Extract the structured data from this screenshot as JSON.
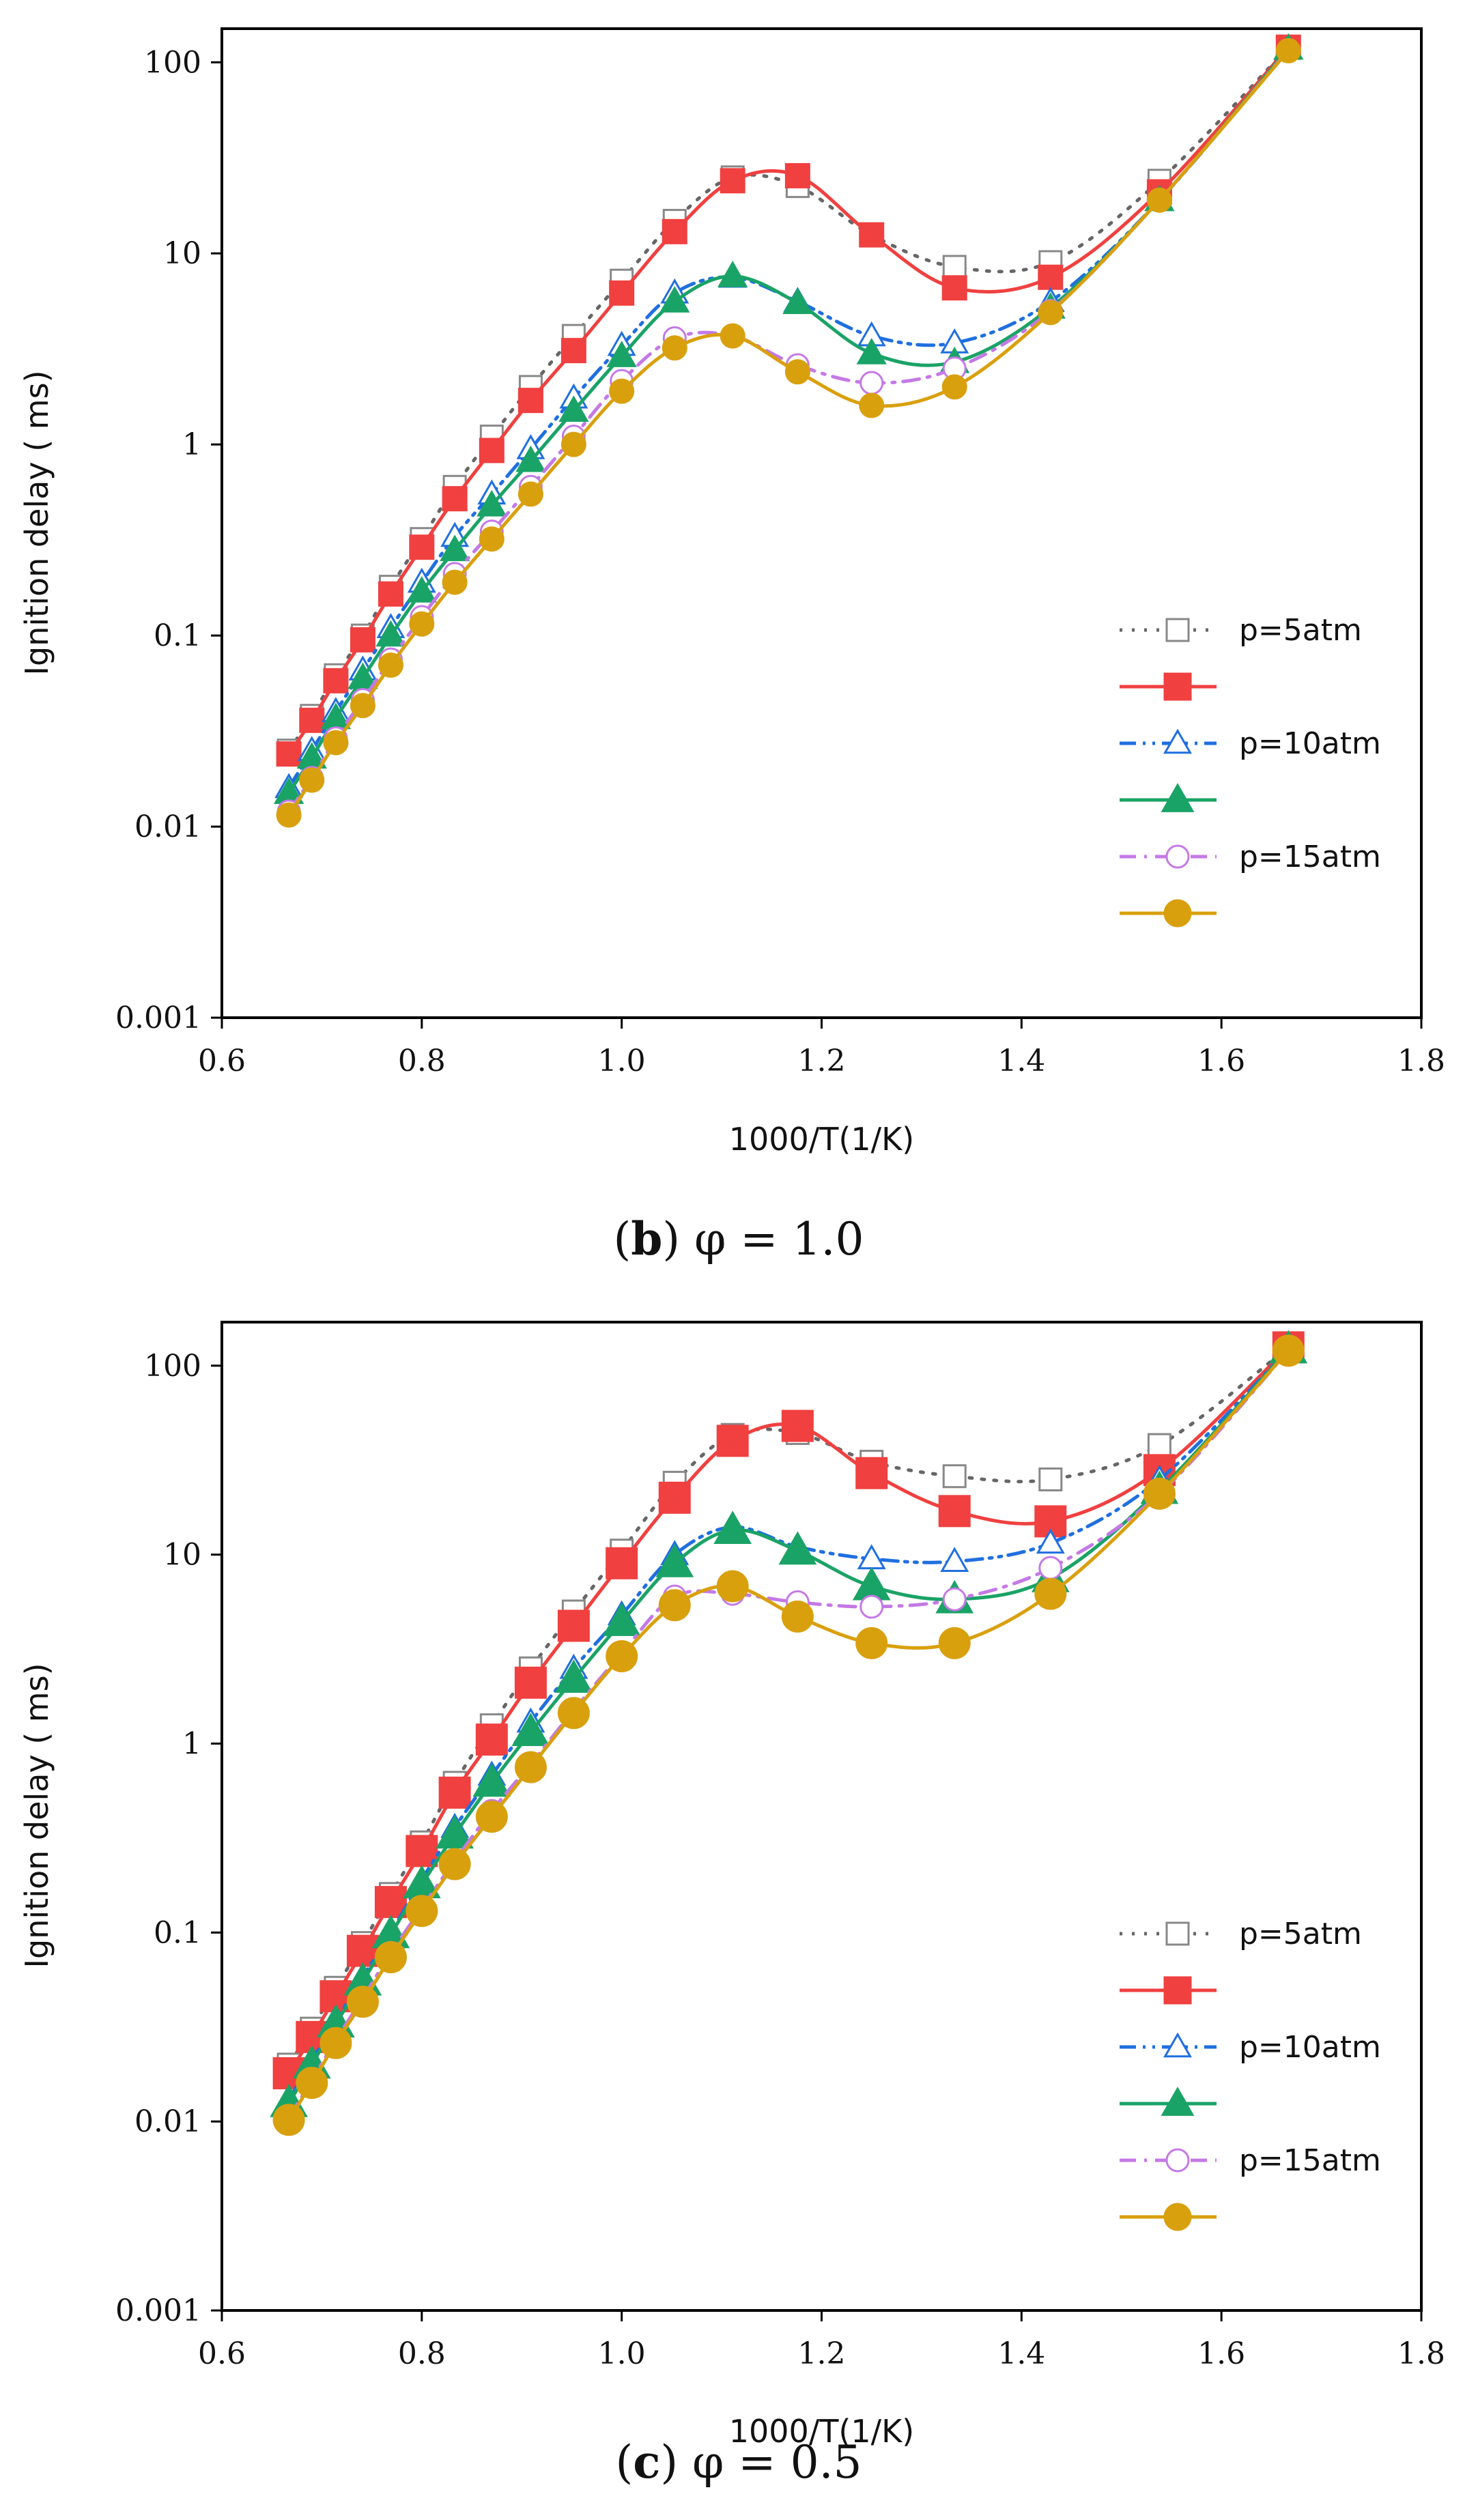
{
  "colors": {
    "p5": "#666666",
    "p5_marker_stroke": "#888888",
    "p10": "#1f6fe0",
    "p15": "#c479e6",
    "red": "#f04040",
    "green": "#1aa366",
    "gold": "#d9a00e"
  },
  "chart_data": [
    {
      "type": "line",
      "panel": "b",
      "caption": {
        "letter": "b",
        "text": "φ = 1.0"
      },
      "xlabel": "1000/T(1/K)",
      "ylabel": "Ignition delay ( ms)",
      "xlim": [
        0.6,
        1.8
      ],
      "ylim": [
        0.001,
        150
      ],
      "yscale": "log",
      "xticks": [
        "0.6",
        "0.8",
        "1.0",
        "1.2",
        "1.4",
        "1.6",
        "1.8"
      ],
      "yticks": [
        "0.001",
        "0.01",
        "0.1",
        "1",
        "10",
        "100"
      ],
      "legend_position": "lower-right",
      "series": [
        {
          "name": "p=5atm",
          "style": "dotted",
          "color_key": "p5",
          "marker": "square",
          "filled": false,
          "x": [
            0.667,
            0.69,
            0.714,
            0.741,
            0.769,
            0.8,
            0.833,
            0.87,
            0.909,
            0.952,
            1.0,
            1.053,
            1.111,
            1.176,
            1.25,
            1.333,
            1.429,
            1.538,
            1.667
          ],
          "y": [
            0.025,
            0.038,
            0.062,
            0.1,
            0.18,
            0.32,
            0.6,
            1.1,
            2.0,
            3.7,
            7.2,
            14.8,
            25.0,
            22.5,
            12.5,
            8.5,
            9.0,
            24.0,
            120.0
          ]
        },
        {
          "name": "",
          "style": "solid",
          "color_key": "red",
          "marker": "square",
          "filled": true,
          "x": [
            0.667,
            0.69,
            0.714,
            0.741,
            0.769,
            0.8,
            0.833,
            0.87,
            0.909,
            0.952,
            1.0,
            1.053,
            1.111,
            1.176,
            1.25,
            1.333,
            1.429,
            1.538,
            1.667
          ],
          "y": [
            0.024,
            0.036,
            0.058,
            0.095,
            0.165,
            0.29,
            0.52,
            0.93,
            1.7,
            3.1,
            6.2,
            13.0,
            24.0,
            25.5,
            12.5,
            6.6,
            7.5,
            21.0,
            120.0
          ]
        },
        {
          "name": "p=10atm",
          "style": "dashdotdot",
          "color_key": "p10",
          "marker": "triangle",
          "filled": false,
          "x": [
            0.667,
            0.69,
            0.714,
            0.741,
            0.769,
            0.8,
            0.833,
            0.87,
            0.909,
            0.952,
            1.0,
            1.053,
            1.111,
            1.176,
            1.25,
            1.333,
            1.429,
            1.538,
            1.667
          ],
          "y": [
            0.016,
            0.025,
            0.04,
            0.066,
            0.11,
            0.19,
            0.33,
            0.55,
            0.95,
            1.75,
            3.3,
            6.2,
            7.5,
            5.6,
            3.7,
            3.4,
            5.6,
            19.0,
            118.0
          ]
        },
        {
          "name": "",
          "style": "solid",
          "color_key": "green",
          "marker": "triangle",
          "filled": true,
          "x": [
            0.667,
            0.69,
            0.714,
            0.741,
            0.769,
            0.8,
            0.833,
            0.87,
            0.909,
            0.952,
            1.0,
            1.053,
            1.111,
            1.176,
            1.25,
            1.333,
            1.429,
            1.538,
            1.667
          ],
          "y": [
            0.015,
            0.023,
            0.037,
            0.06,
            0.1,
            0.17,
            0.28,
            0.48,
            0.82,
            1.5,
            2.9,
            5.6,
            7.6,
            5.5,
            3.0,
            2.7,
            5.2,
            19.0,
            118.0
          ]
        },
        {
          "name": "p=15atm",
          "style": "dashdot",
          "color_key": "p15",
          "marker": "circle",
          "filled": false,
          "x": [
            0.667,
            0.69,
            0.714,
            0.741,
            0.769,
            0.8,
            0.833,
            0.87,
            0.909,
            0.952,
            1.0,
            1.053,
            1.111,
            1.176,
            1.25,
            1.333,
            1.429,
            1.538,
            1.667
          ],
          "y": [
            0.012,
            0.018,
            0.029,
            0.046,
            0.075,
            0.125,
            0.21,
            0.35,
            0.6,
            1.1,
            2.15,
            3.6,
            3.7,
            2.6,
            2.1,
            2.5,
            5.0,
            19.0,
            116.0
          ]
        },
        {
          "name": "",
          "style": "solid",
          "color_key": "gold",
          "marker": "circle",
          "filled": true,
          "x": [
            0.667,
            0.69,
            0.714,
            0.741,
            0.769,
            0.8,
            0.833,
            0.87,
            0.909,
            0.952,
            1.0,
            1.053,
            1.111,
            1.176,
            1.25,
            1.333,
            1.429,
            1.538,
            1.667
          ],
          "y": [
            0.0115,
            0.0175,
            0.0275,
            0.043,
            0.07,
            0.115,
            0.19,
            0.32,
            0.55,
            1.0,
            1.9,
            3.2,
            3.7,
            2.4,
            1.6,
            2.0,
            4.9,
            19.0,
            115.0
          ]
        }
      ]
    },
    {
      "type": "line",
      "panel": "c",
      "caption": {
        "letter": "c",
        "text": "φ = 0.5"
      },
      "xlabel": "1000/T(1/K)",
      "ylabel": "Ignition delay ( ms)",
      "xlim": [
        0.6,
        1.8
      ],
      "ylim": [
        0.001,
        170
      ],
      "yscale": "log",
      "xticks": [
        "0.6",
        "0.8",
        "1.0",
        "1.2",
        "1.4",
        "1.6",
        "1.8"
      ],
      "yticks": [
        "0.001",
        "0.01",
        "0.1",
        "1",
        "10",
        "100"
      ],
      "legend_position": "lower-right",
      "series": [
        {
          "name": "p=5atm",
          "style": "dotted",
          "color_key": "p5",
          "marker": "square",
          "filled": false,
          "x": [
            0.667,
            0.69,
            0.714,
            0.741,
            0.769,
            0.8,
            0.833,
            0.87,
            0.909,
            0.952,
            1.0,
            1.053,
            1.111,
            1.176,
            1.25,
            1.333,
            1.429,
            1.538,
            1.667
          ],
          "y": [
            0.02,
            0.031,
            0.051,
            0.088,
            0.16,
            0.3,
            0.62,
            1.25,
            2.5,
            5.0,
            10.5,
            24.0,
            43.0,
            44.0,
            31.0,
            26.0,
            25.0,
            38.0,
            125.0
          ]
        },
        {
          "name": "",
          "style": "solid",
          "color_key": "red",
          "marker": "square",
          "filled": true,
          "x": [
            0.667,
            0.69,
            0.714,
            0.741,
            0.769,
            0.8,
            0.833,
            0.87,
            0.909,
            0.952,
            1.0,
            1.053,
            1.111,
            1.176,
            1.25,
            1.333,
            1.429,
            1.538,
            1.667
          ],
          "y": [
            0.018,
            0.028,
            0.046,
            0.08,
            0.145,
            0.27,
            0.55,
            1.05,
            2.1,
            4.2,
            9.0,
            20.0,
            40.0,
            48.0,
            27.0,
            17.0,
            15.0,
            28.0,
            125.0
          ]
        },
        {
          "name": "p=10atm",
          "style": "dashdotdot",
          "color_key": "p10",
          "marker": "triangle",
          "filled": false,
          "x": [
            0.667,
            0.69,
            0.714,
            0.741,
            0.769,
            0.8,
            0.833,
            0.87,
            0.909,
            0.952,
            1.0,
            1.053,
            1.111,
            1.176,
            1.25,
            1.333,
            1.429,
            1.538,
            1.667
          ],
          "y": [
            0.013,
            0.021,
            0.034,
            0.058,
            0.1,
            0.19,
            0.36,
            0.68,
            1.3,
            2.5,
            4.8,
            10.0,
            14.0,
            11.0,
            9.5,
            9.2,
            11.5,
            25.0,
            122.0
          ]
        },
        {
          "name": "",
          "style": "solid",
          "color_key": "green",
          "marker": "triangle",
          "filled": true,
          "x": [
            0.667,
            0.69,
            0.714,
            0.741,
            0.769,
            0.8,
            0.833,
            0.87,
            0.909,
            0.952,
            1.0,
            1.053,
            1.111,
            1.176,
            1.25,
            1.333,
            1.429,
            1.538,
            1.667
          ],
          "y": [
            0.0125,
            0.02,
            0.033,
            0.055,
            0.098,
            0.18,
            0.33,
            0.62,
            1.15,
            2.2,
            4.4,
            9.0,
            13.5,
            10.5,
            6.8,
            5.8,
            7.5,
            22.0,
            122.0
          ]
        },
        {
          "name": "p=15atm",
          "style": "dashdot",
          "color_key": "p15",
          "marker": "circle",
          "filled": false,
          "x": [
            0.667,
            0.69,
            0.714,
            0.741,
            0.769,
            0.8,
            0.833,
            0.87,
            0.909,
            0.952,
            1.0,
            1.053,
            1.111,
            1.176,
            1.25,
            1.333,
            1.429,
            1.538,
            1.667
          ],
          "y": [
            0.0105,
            0.0165,
            0.027,
            0.045,
            0.078,
            0.135,
            0.24,
            0.44,
            0.78,
            1.5,
            3.0,
            6.0,
            6.2,
            5.6,
            5.3,
            5.8,
            8.5,
            21.0,
            120.0
          ]
        },
        {
          "name": "",
          "style": "solid",
          "color_key": "gold",
          "marker": "circle",
          "filled": true,
          "x": [
            0.667,
            0.69,
            0.714,
            0.741,
            0.769,
            0.8,
            0.833,
            0.87,
            0.909,
            0.952,
            1.0,
            1.053,
            1.111,
            1.176,
            1.25,
            1.333,
            1.429,
            1.538,
            1.667
          ],
          "y": [
            0.0102,
            0.016,
            0.026,
            0.043,
            0.074,
            0.13,
            0.23,
            0.41,
            0.75,
            1.45,
            2.9,
            5.4,
            6.8,
            4.7,
            3.4,
            3.4,
            6.2,
            21.0,
            120.0
          ]
        }
      ]
    }
  ]
}
